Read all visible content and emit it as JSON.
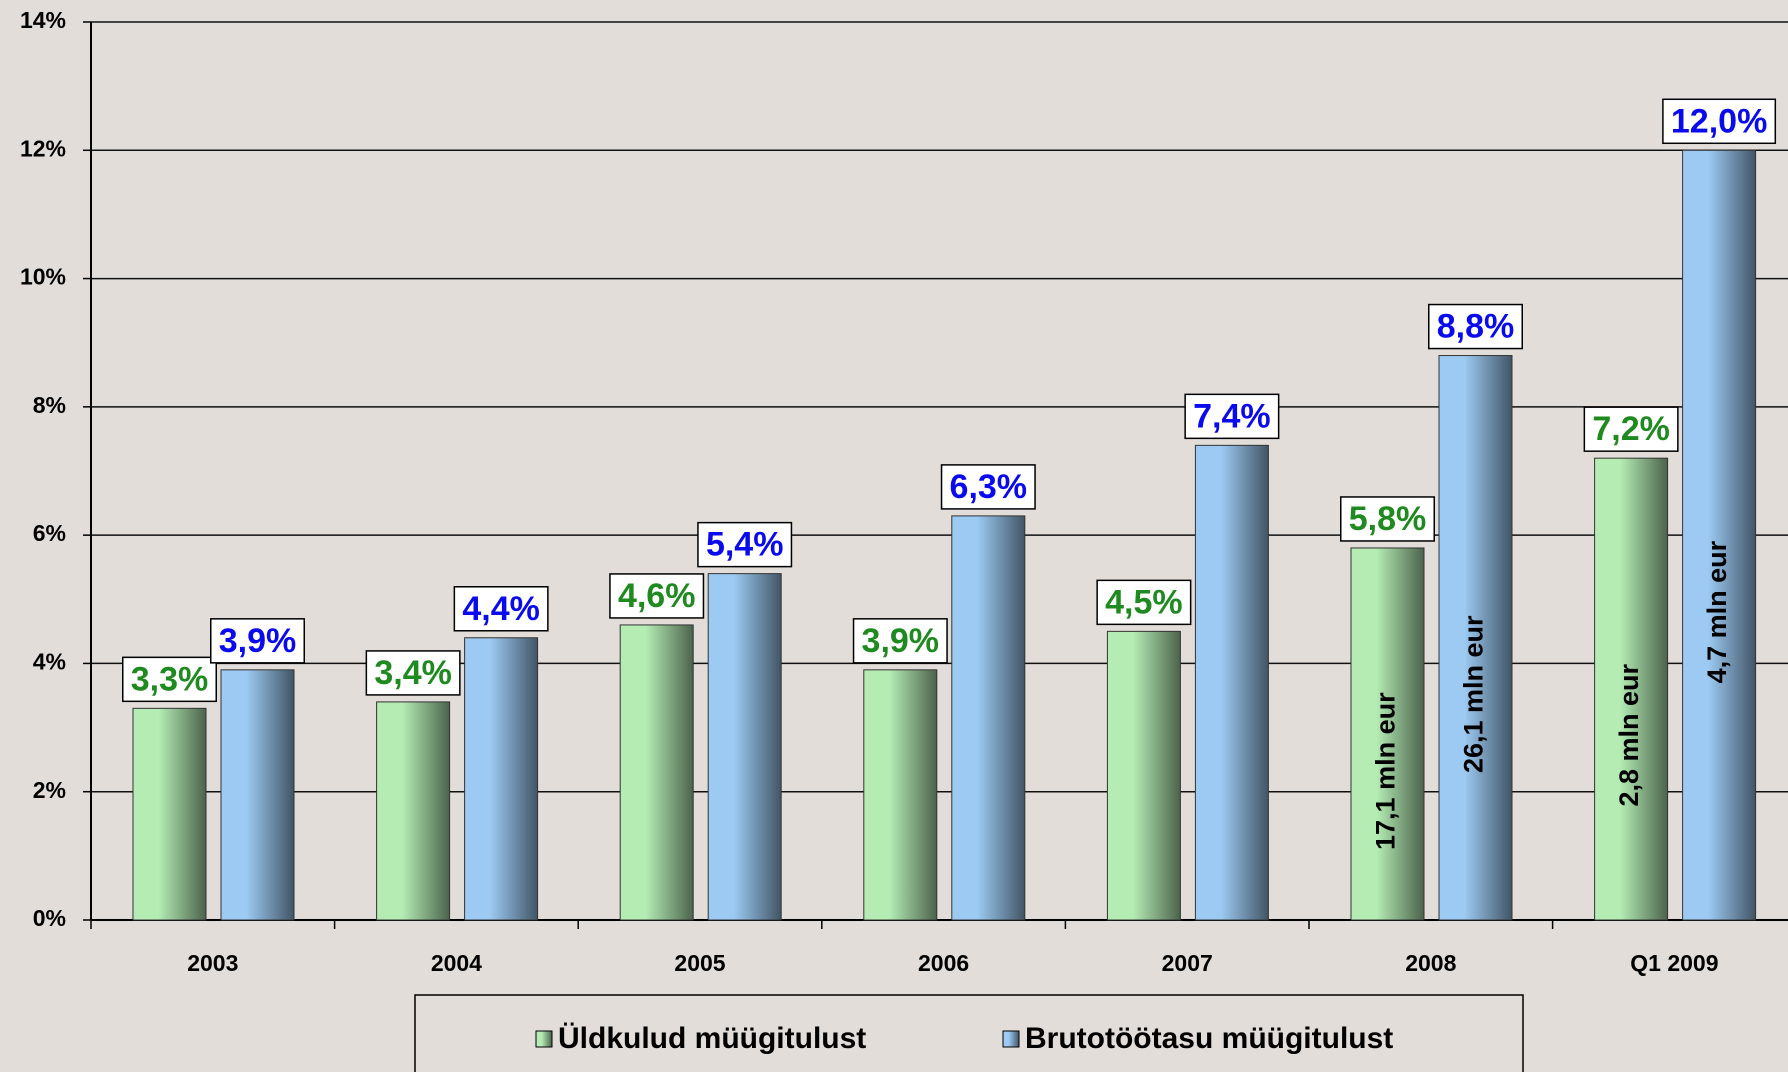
{
  "chart_data": {
    "type": "bar",
    "categories": [
      "2003",
      "2004",
      "2005",
      "2006",
      "2007",
      "2008",
      "Q1 2009"
    ],
    "series": [
      {
        "name": "Üldkulud müügitulust",
        "color": "#b4ecb4",
        "label_color": "#1f8a1f",
        "values": [
          3.3,
          3.4,
          4.6,
          3.9,
          4.5,
          5.8,
          7.2
        ],
        "value_labels": [
          "3,3%",
          "3,4%",
          "4,6%",
          "3,9%",
          "4,5%",
          "5,8%",
          "7,2%"
        ],
        "inner_labels": [
          null,
          null,
          null,
          null,
          null,
          "17,1 mln eur",
          "2,8 mln eur"
        ]
      },
      {
        "name": "Brutotöötasu müügitulust",
        "color": "#9ccaf2",
        "label_color": "#0a0aee",
        "values": [
          3.9,
          4.4,
          5.4,
          6.3,
          7.4,
          8.8,
          12.0
        ],
        "value_labels": [
          "3,9%",
          "4,4%",
          "5,4%",
          "6,3%",
          "7,4%",
          "8,8%",
          "12,0%"
        ],
        "inner_labels": [
          null,
          null,
          null,
          null,
          null,
          "26,1 mln eur",
          "4,7 mln eur"
        ]
      }
    ],
    "ylim": [
      0,
      14
    ],
    "yticks": [
      {
        "value": 0,
        "label": "0%"
      },
      {
        "value": 2,
        "label": "2%"
      },
      {
        "value": 4,
        "label": "4%"
      },
      {
        "value": 6,
        "label": "6%"
      },
      {
        "value": 8,
        "label": "8%"
      },
      {
        "value": 10,
        "label": "10%"
      },
      {
        "value": 12,
        "label": "12%"
      },
      {
        "value": 14,
        "label": "14%"
      }
    ],
    "grid": true,
    "legend": "bottom"
  }
}
